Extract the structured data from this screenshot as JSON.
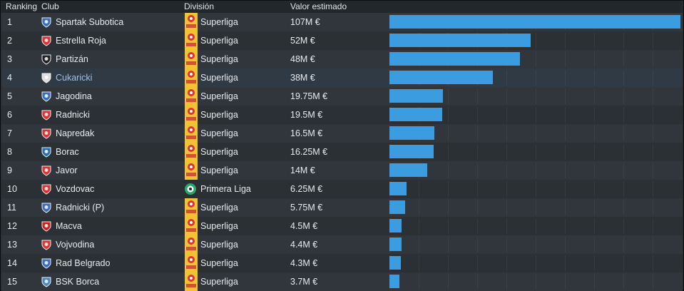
{
  "headers": {
    "ranking": "Ranking",
    "club": "Club",
    "division": "División",
    "value": "Valor estimado"
  },
  "scale_max": 107,
  "rows": [
    {
      "rank": "1",
      "club": "Spartak Subotica",
      "division": "Superliga",
      "value": "107M €",
      "amount": 107,
      "crest_color": "#3a6fc0",
      "div_type": "superliga"
    },
    {
      "rank": "2",
      "club": "Estrella Roja",
      "division": "Superliga",
      "value": "52M €",
      "amount": 52,
      "crest_color": "#d33",
      "div_type": "superliga"
    },
    {
      "rank": "3",
      "club": "Partizán",
      "division": "Superliga",
      "value": "48M €",
      "amount": 48,
      "crest_color": "#222",
      "div_type": "superliga"
    },
    {
      "rank": "4",
      "club": "Cukaricki",
      "division": "Superliga",
      "value": "38M €",
      "amount": 38,
      "crest_color": "#ddd",
      "div_type": "superliga",
      "link": true
    },
    {
      "rank": "5",
      "club": "Jagodina",
      "division": "Superliga",
      "value": "19.75M €",
      "amount": 19.75,
      "crest_color": "#3a6fc0",
      "div_type": "superliga"
    },
    {
      "rank": "6",
      "club": "Radnicki",
      "division": "Superliga",
      "value": "19.5M €",
      "amount": 19.5,
      "crest_color": "#d33",
      "div_type": "superliga"
    },
    {
      "rank": "7",
      "club": "Napredak",
      "division": "Superliga",
      "value": "16.5M €",
      "amount": 16.5,
      "crest_color": "#d33",
      "div_type": "superliga"
    },
    {
      "rank": "8",
      "club": "Borac",
      "division": "Superliga",
      "value": "16.25M €",
      "amount": 16.25,
      "crest_color": "#2a6fa8",
      "div_type": "superliga"
    },
    {
      "rank": "9",
      "club": "Javor",
      "division": "Superliga",
      "value": "14M €",
      "amount": 14,
      "crest_color": "#d33",
      "div_type": "superliga"
    },
    {
      "rank": "10",
      "club": "Vozdovac",
      "division": "Primera Liga",
      "value": "6.25M €",
      "amount": 6.25,
      "crest_color": "#d33",
      "div_type": "primera"
    },
    {
      "rank": "11",
      "club": "Radnicki (P)",
      "division": "Superliga",
      "value": "5.75M €",
      "amount": 5.75,
      "crest_color": "#3a6fc0",
      "div_type": "superliga"
    },
    {
      "rank": "12",
      "club": "Macva",
      "division": "Superliga",
      "value": "4.5M €",
      "amount": 4.5,
      "crest_color": "#c22",
      "div_type": "superliga"
    },
    {
      "rank": "13",
      "club": "Vojvodina",
      "division": "Superliga",
      "value": "4.4M €",
      "amount": 4.4,
      "crest_color": "#d33",
      "div_type": "superliga"
    },
    {
      "rank": "14",
      "club": "Rad Belgrado",
      "division": "Superliga",
      "value": "4.3M €",
      "amount": 4.3,
      "crest_color": "#3a6fc0",
      "div_type": "superliga"
    },
    {
      "rank": "15",
      "club": "BSK Borca",
      "division": "Superliga",
      "value": "3.7M €",
      "amount": 3.7,
      "crest_color": "#4a88c8",
      "div_type": "superliga"
    }
  ],
  "colors": {
    "bar": "#3b9ce0",
    "superliga_logo": "#f1c232",
    "primera_logo": "#2aa86a"
  }
}
